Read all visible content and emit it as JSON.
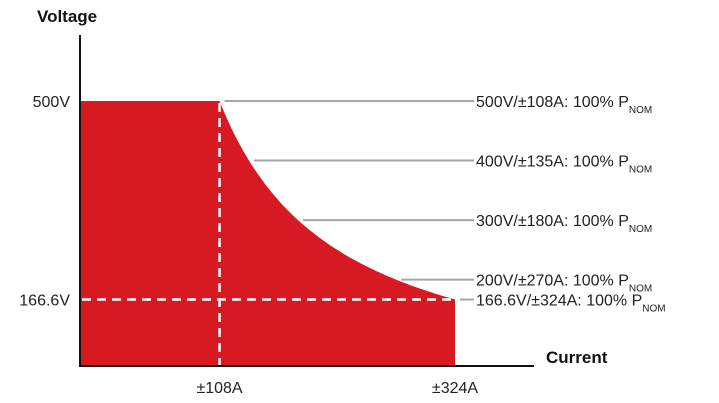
{
  "chart_data": {
    "type": "area",
    "title": "",
    "ylabel": "Voltage",
    "xlabel": "Current",
    "x_unit": "A",
    "y_unit": "V",
    "xlim": [
      -20,
      400
    ],
    "ylim": [
      55,
      560
    ],
    "y_ticks": [
      {
        "value": 500,
        "label": "500V"
      },
      {
        "value": 166.6,
        "label": "166.6V"
      }
    ],
    "x_ticks": [
      {
        "value": 108,
        "label": "±108A"
      },
      {
        "value": 324,
        "label": "±324A"
      }
    ],
    "power_limit_curve": [
      {
        "current": 108,
        "voltage": 500
      },
      {
        "current": 135,
        "voltage": 400
      },
      {
        "current": 180,
        "voltage": 300
      },
      {
        "current": 270,
        "voltage": 200
      },
      {
        "current": 324,
        "voltage": 166.6
      }
    ],
    "callouts": [
      {
        "voltage": 500,
        "current": 108,
        "text": "500V/±108A: 100% P",
        "subscript": "NOM"
      },
      {
        "voltage": 400,
        "current": 135,
        "text": "400V/±135A: 100% P",
        "subscript": "NOM"
      },
      {
        "voltage": 300,
        "current": 180,
        "text": "300V/±180A: 100% P",
        "subscript": "NOM"
      },
      {
        "voltage": 200,
        "current": 270,
        "text": "200V/±270A: 100% P",
        "subscript": "NOM"
      },
      {
        "voltage": 166.6,
        "current": 324,
        "text": "166.6V/±324A: 100% P",
        "subscript": "NOM"
      }
    ],
    "colors": {
      "fill": "#d71a21",
      "guide": "#ffffff",
      "callout_line": "#a6a6a6",
      "axis": "#111111"
    },
    "grid": false,
    "legend": "none"
  }
}
